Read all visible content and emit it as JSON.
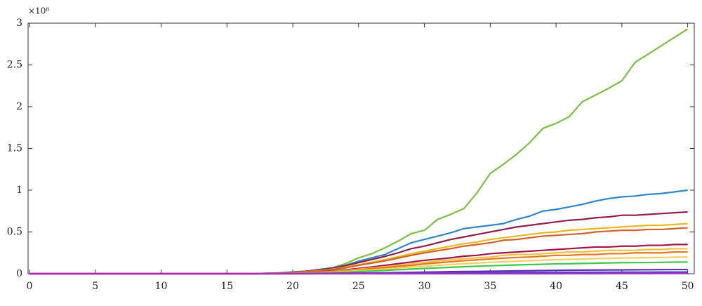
{
  "chart_data": {
    "type": "line",
    "y_offset_label": "×10⁸",
    "x": [
      0,
      17,
      18,
      19,
      20,
      21,
      22,
      23,
      24,
      25,
      26,
      27,
      28,
      29,
      30,
      31,
      32,
      33,
      34,
      35,
      36,
      37,
      38,
      39,
      40,
      41,
      42,
      43,
      44,
      45,
      46,
      47,
      48,
      49,
      50
    ],
    "xlim": [
      0,
      50.5
    ],
    "xticks": [
      0,
      5,
      10,
      15,
      20,
      25,
      30,
      35,
      40,
      45,
      50
    ],
    "ylim": [
      0,
      3
    ],
    "yticks": [
      0,
      0.5,
      1,
      1.5,
      2,
      2.5,
      3
    ],
    "grid": false,
    "series": [
      {
        "color": "#7ac142",
        "values": [
          0,
          0,
          0.005,
          0.01,
          0.02,
          0.03,
          0.05,
          0.07,
          0.12,
          0.19,
          0.24,
          0.31,
          0.39,
          0.48,
          0.52,
          0.65,
          0.71,
          0.78,
          0.97,
          1.2,
          1.31,
          1.43,
          1.57,
          1.74,
          1.8,
          1.88,
          2.06,
          2.14,
          2.22,
          2.31,
          2.53,
          2.63,
          2.73,
          2.83,
          2.93
        ]
      },
      {
        "color": "#2f86c6",
        "values": [
          0,
          0,
          0.005,
          0.01,
          0.02,
          0.03,
          0.05,
          0.07,
          0.1,
          0.15,
          0.19,
          0.23,
          0.3,
          0.37,
          0.41,
          0.45,
          0.49,
          0.54,
          0.56,
          0.58,
          0.6,
          0.65,
          0.69,
          0.75,
          0.77,
          0.8,
          0.83,
          0.87,
          0.9,
          0.92,
          0.93,
          0.95,
          0.96,
          0.98,
          1.0
        ]
      },
      {
        "color": "#8e1f4f",
        "values": [
          0,
          0,
          0.004,
          0.007,
          0.015,
          0.03,
          0.044,
          0.067,
          0.096,
          0.133,
          0.17,
          0.207,
          0.25,
          0.3,
          0.33,
          0.37,
          0.41,
          0.44,
          0.47,
          0.5,
          0.53,
          0.56,
          0.58,
          0.6,
          0.62,
          0.64,
          0.65,
          0.67,
          0.68,
          0.7,
          0.7,
          0.71,
          0.72,
          0.73,
          0.74
        ]
      },
      {
        "color": "#e8b820",
        "values": [
          0,
          0,
          0.003,
          0.006,
          0.012,
          0.024,
          0.036,
          0.054,
          0.078,
          0.108,
          0.138,
          0.168,
          0.204,
          0.24,
          0.27,
          0.3,
          0.33,
          0.36,
          0.38,
          0.41,
          0.43,
          0.45,
          0.47,
          0.49,
          0.5,
          0.52,
          0.53,
          0.54,
          0.55,
          0.56,
          0.57,
          0.58,
          0.58,
          0.59,
          0.6
        ]
      },
      {
        "color": "#d0622a",
        "values": [
          0,
          0,
          0.003,
          0.006,
          0.011,
          0.022,
          0.033,
          0.05,
          0.07,
          0.1,
          0.127,
          0.154,
          0.187,
          0.22,
          0.25,
          0.275,
          0.3,
          0.33,
          0.35,
          0.37,
          0.4,
          0.41,
          0.43,
          0.45,
          0.46,
          0.47,
          0.48,
          0.5,
          0.51,
          0.52,
          0.52,
          0.53,
          0.53,
          0.54,
          0.55
        ]
      },
      {
        "color": "#a0154a",
        "values": [
          0,
          0,
          0.002,
          0.004,
          0.007,
          0.014,
          0.021,
          0.032,
          0.046,
          0.063,
          0.08,
          0.1,
          0.12,
          0.14,
          0.16,
          0.175,
          0.19,
          0.21,
          0.22,
          0.24,
          0.25,
          0.26,
          0.27,
          0.28,
          0.29,
          0.3,
          0.31,
          0.32,
          0.32,
          0.33,
          0.33,
          0.34,
          0.34,
          0.35,
          0.35
        ]
      },
      {
        "color": "#f0c040",
        "values": [
          0,
          0,
          0.002,
          0.003,
          0.006,
          0.012,
          0.018,
          0.027,
          0.039,
          0.054,
          0.069,
          0.084,
          0.1,
          0.12,
          0.135,
          0.15,
          0.165,
          0.18,
          0.19,
          0.2,
          0.22,
          0.23,
          0.23,
          0.24,
          0.25,
          0.26,
          0.26,
          0.27,
          0.28,
          0.28,
          0.28,
          0.29,
          0.29,
          0.3,
          0.3
        ]
      },
      {
        "color": "#e07a20",
        "values": [
          0,
          0,
          0.001,
          0.003,
          0.005,
          0.01,
          0.016,
          0.023,
          0.034,
          0.047,
          0.06,
          0.073,
          0.088,
          0.1,
          0.117,
          0.13,
          0.143,
          0.156,
          0.166,
          0.177,
          0.187,
          0.195,
          0.2,
          0.21,
          0.22,
          0.22,
          0.23,
          0.23,
          0.24,
          0.24,
          0.25,
          0.25,
          0.25,
          0.26,
          0.26
        ]
      },
      {
        "color": "#f5d060",
        "values": [
          0,
          0,
          0.001,
          0.002,
          0.004,
          0.008,
          0.012,
          0.018,
          0.026,
          0.036,
          0.046,
          0.056,
          0.068,
          0.08,
          0.09,
          0.1,
          0.11,
          0.12,
          0.128,
          0.136,
          0.144,
          0.15,
          0.156,
          0.162,
          0.168,
          0.172,
          0.176,
          0.18,
          0.184,
          0.188,
          0.19,
          0.192,
          0.194,
          0.198,
          0.2
        ]
      },
      {
        "color": "#3cc84a",
        "values": [
          0,
          0,
          0,
          0.001,
          0.003,
          0.006,
          0.008,
          0.013,
          0.018,
          0.025,
          0.032,
          0.039,
          0.048,
          0.056,
          0.063,
          0.07,
          0.077,
          0.084,
          0.09,
          0.095,
          0.1,
          0.105,
          0.109,
          0.113,
          0.118,
          0.12,
          0.123,
          0.126,
          0.129,
          0.132,
          0.133,
          0.134,
          0.136,
          0.139,
          0.14
        ]
      },
      {
        "color": "#6a2ab0",
        "values": [
          0,
          0,
          0,
          0,
          0,
          0.001,
          0.002,
          0.003,
          0.005,
          0.007,
          0.009,
          0.011,
          0.014,
          0.016,
          0.019,
          0.021,
          0.024,
          0.026,
          0.028,
          0.03,
          0.032,
          0.034,
          0.036,
          0.038,
          0.04,
          0.042,
          0.043,
          0.044,
          0.045,
          0.046,
          0.047,
          0.048,
          0.049,
          0.05,
          0.05
        ]
      },
      {
        "color": "#2060c0",
        "values": [
          0,
          0,
          0,
          0,
          0,
          0,
          0.001,
          0.001,
          0.002,
          0.003,
          0.004,
          0.005,
          0.006,
          0.007,
          0.008,
          0.009,
          0.01,
          0.011,
          0.012,
          0.013,
          0.014,
          0.015,
          0.015,
          0.016,
          0.016,
          0.017,
          0.017,
          0.018,
          0.018,
          0.019,
          0.019,
          0.019,
          0.02,
          0.02,
          0.02
        ]
      },
      {
        "color": "#c020c0",
        "values": [
          0,
          0,
          0,
          0,
          0,
          0,
          0,
          0,
          0,
          0,
          0,
          0,
          0,
          0,
          0,
          0,
          0,
          0,
          0,
          0,
          0,
          0,
          0,
          0,
          0,
          0.001,
          0.001,
          0.001,
          0.002,
          0.002,
          0.002,
          0.002,
          0.003,
          0.003,
          0.003
        ]
      }
    ]
  }
}
